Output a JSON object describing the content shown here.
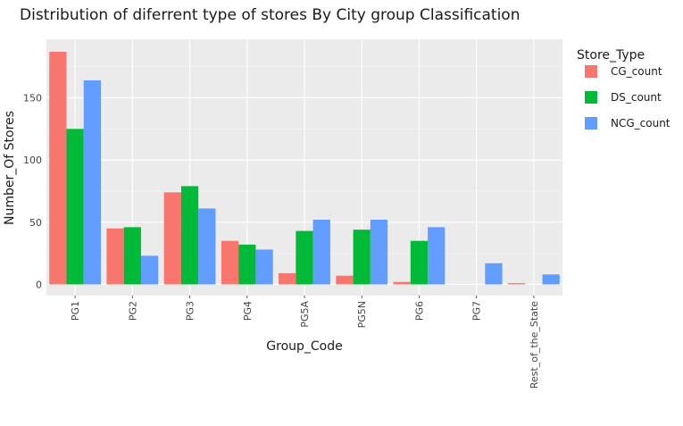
{
  "chart_data": {
    "type": "bar",
    "title": "Distribution of diferrent type of stores By City group Classification",
    "xlabel": "Group_Code",
    "ylabel": "Number_Of Stores",
    "categories": [
      "PG1",
      "PG2",
      "PG3",
      "PG4",
      "PG5A",
      "PG5N",
      "PG6",
      "PG7",
      "Rest_of_the_State"
    ],
    "series": [
      {
        "name": "CG_count",
        "color": "#F8766D",
        "values": [
          187,
          45,
          74,
          35,
          9,
          7,
          2,
          0,
          1
        ]
      },
      {
        "name": "DS_count",
        "color": "#00BA38",
        "values": [
          125,
          46,
          79,
          32,
          43,
          44,
          35,
          0,
          0
        ]
      },
      {
        "name": "NCG_count",
        "color": "#619CFF",
        "values": [
          164,
          23,
          61,
          28,
          52,
          52,
          46,
          17,
          8
        ]
      }
    ],
    "yticks": [
      0,
      50,
      100,
      150
    ],
    "ylim": [
      -9,
      197
    ],
    "grid": true,
    "legend": {
      "title": "Store_Type",
      "placement": "right"
    }
  }
}
